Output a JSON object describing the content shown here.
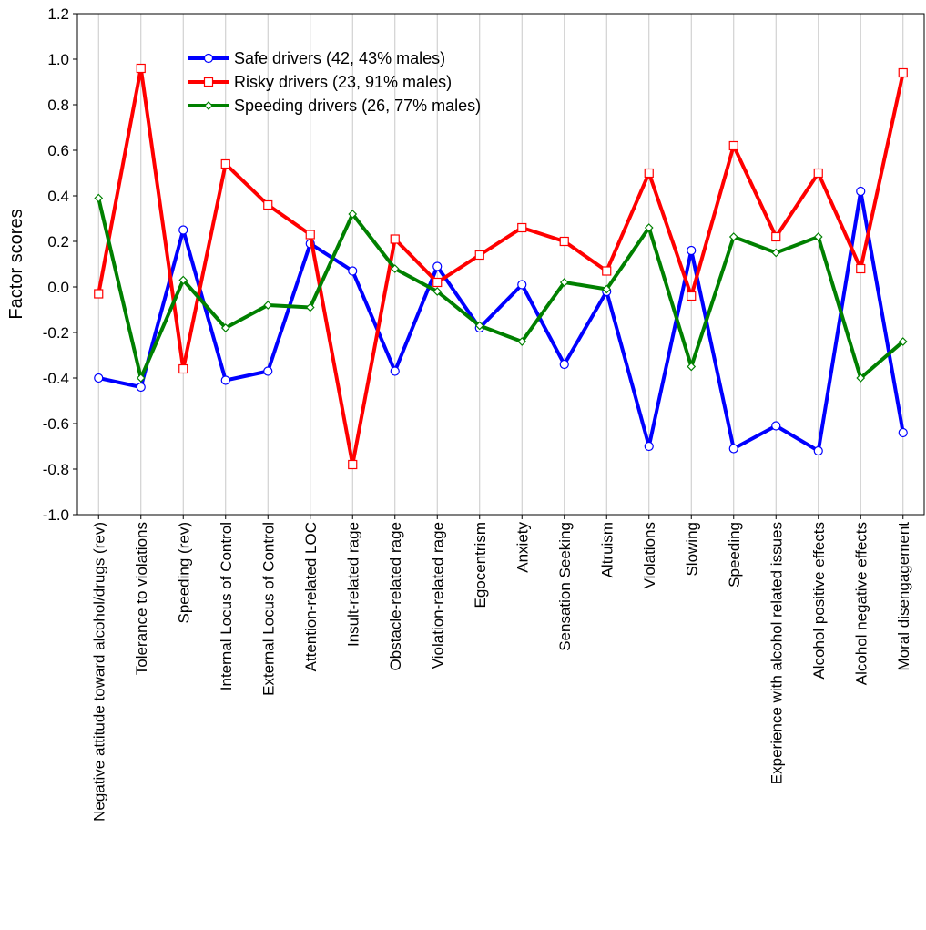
{
  "chart_data": {
    "type": "line",
    "title": "",
    "xlabel": "",
    "ylabel": "Factor scores",
    "ylim": [
      -1.0,
      1.2
    ],
    "y_ticks": [
      -1.0,
      -0.8,
      -0.6,
      -0.4,
      -0.2,
      0.0,
      0.2,
      0.4,
      0.6,
      0.8,
      1.0,
      1.2
    ],
    "y_tick_labels": [
      "-1.0",
      "-0.8",
      "-0.6",
      "-0.4",
      "-0.2",
      "0.0",
      "0.2",
      "0.4",
      "0.6",
      "0.8",
      "1.0",
      "1.2"
    ],
    "grid": "vertical",
    "legend_position": "top-center",
    "categories": [
      "Negative attitude toward alcohol/drugs (rev)",
      "Tolerance to violations",
      "Speeding (rev)",
      "Internal Locus of Control",
      "External Locus of Control",
      "Attention-related LOC",
      "Insult-related rage",
      "Obstacle-related rage",
      "Violation-related rage",
      "Egocentrism",
      "Anxiety",
      "Sensation Seeking",
      "Altruism",
      "Violations",
      "Slowing",
      "Speeding",
      "Experience with alcohol related issues",
      "Alcohol positive effects",
      "Alcohol negative effects",
      "Moral disengagement"
    ],
    "series": [
      {
        "name": "Safe drivers (42, 43% males)",
        "color": "#0000ff",
        "marker": "circle",
        "values": [
          -0.4,
          -0.44,
          0.25,
          -0.41,
          -0.37,
          0.19,
          0.07,
          -0.37,
          0.09,
          -0.18,
          0.01,
          -0.34,
          -0.02,
          -0.7,
          0.16,
          -0.71,
          -0.61,
          -0.72,
          0.42,
          -0.64
        ]
      },
      {
        "name": "Risky drivers (23, 91% males)",
        "color": "#ff0000",
        "marker": "square",
        "values": [
          -0.03,
          0.96,
          -0.36,
          0.54,
          0.36,
          0.23,
          -0.78,
          0.21,
          0.02,
          0.14,
          0.26,
          0.2,
          0.07,
          0.5,
          -0.04,
          0.62,
          0.22,
          0.5,
          0.08,
          0.94
        ]
      },
      {
        "name": "Speeding drivers (26, 77% males)",
        "color": "#008000",
        "marker": "diamond",
        "values": [
          0.39,
          -0.4,
          0.03,
          -0.18,
          -0.08,
          -0.09,
          0.32,
          0.08,
          -0.02,
          -0.17,
          -0.24,
          0.02,
          -0.01,
          0.26,
          -0.35,
          0.22,
          0.15,
          0.22,
          -0.4,
          -0.24
        ]
      }
    ]
  }
}
